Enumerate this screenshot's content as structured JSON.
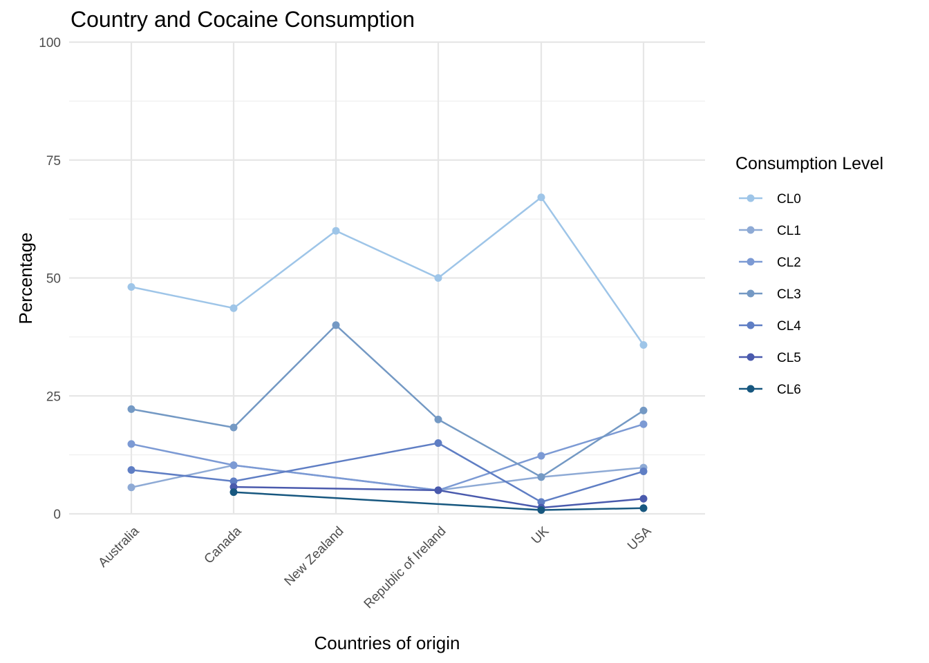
{
  "chart_data": {
    "type": "line",
    "title": "Country and Cocaine Consumption",
    "xlabel": "Countries of origin",
    "ylabel": "Percentage",
    "categories": [
      "Australia",
      "Canada",
      "New Zealand",
      "Republic of Ireland",
      "UK",
      "USA"
    ],
    "ylim": [
      0,
      100
    ],
    "yticks": [
      0,
      25,
      50,
      75,
      100
    ],
    "grid": true,
    "legend": {
      "title": "Consumption Level",
      "position": "right"
    },
    "series": [
      {
        "name": "CL0",
        "color": "#9ec5e8",
        "values": [
          48.1,
          43.6,
          60.0,
          50.0,
          67.1,
          35.8
        ]
      },
      {
        "name": "CL1",
        "color": "#8eaad5",
        "values": [
          5.6,
          10.3,
          null,
          5.0,
          7.8,
          9.8
        ]
      },
      {
        "name": "CL2",
        "color": "#7c9ad4",
        "values": [
          14.8,
          10.3,
          null,
          5.0,
          12.3,
          19.0
        ]
      },
      {
        "name": "CL3",
        "color": "#7499c4",
        "values": [
          22.2,
          18.3,
          40.0,
          20.0,
          7.8,
          21.9
        ]
      },
      {
        "name": "CL4",
        "color": "#5f7ec4",
        "values": [
          9.3,
          6.9,
          null,
          15.0,
          2.5,
          9.0
        ]
      },
      {
        "name": "CL5",
        "color": "#4a5aad",
        "values": [
          null,
          5.7,
          null,
          5.0,
          1.3,
          3.2
        ]
      },
      {
        "name": "CL6",
        "color": "#17577f",
        "values": [
          null,
          4.6,
          null,
          null,
          0.8,
          1.2
        ]
      }
    ]
  }
}
